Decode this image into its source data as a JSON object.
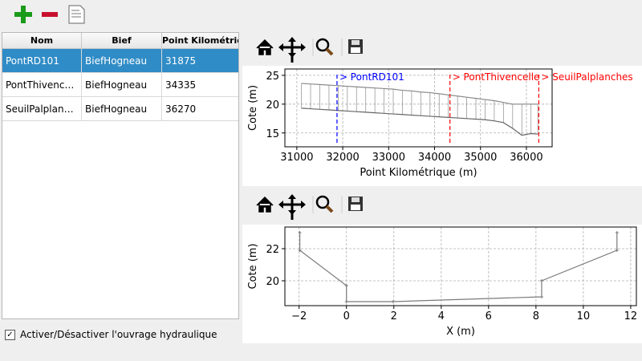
{
  "table": {
    "headers": [
      "Nom",
      "Bief",
      "Point Kilométrique"
    ],
    "rows": [
      [
        "PontRD101",
        "BiefHogneau",
        "31875"
      ],
      [
        "PontThivencelle",
        "BiefHogneau",
        "34335"
      ],
      [
        "SeuilPalplanches",
        "BiefHogneau",
        "36270"
      ]
    ],
    "selected_row": 0
  },
  "checkbox": {
    "label": "Activer/Désactiver l'ouvrage hydraulique",
    "checked": true
  },
  "chart_data": [
    {
      "type": "line",
      "xlabel": "Point Kilométrique (m)",
      "ylabel": "Cote (m)",
      "x": [
        31100,
        31300,
        31500,
        31700,
        31900,
        32100,
        32300,
        32500,
        32700,
        32900,
        33100,
        33300,
        33500,
        33700,
        33900,
        34100,
        34300,
        34500,
        34700,
        34900,
        35100,
        35300,
        35500,
        35700,
        35900,
        36100,
        36250
      ],
      "series": [
        {
          "color": "#8a8a8a",
          "values": [
            23.6,
            23.5,
            23.4,
            23.3,
            23.2,
            23.1,
            23.0,
            22.9,
            22.8,
            22.7,
            22.6,
            22.4,
            22.3,
            22.1,
            22.0,
            21.8,
            21.6,
            21.4,
            21.2,
            21.0,
            20.8,
            20.6,
            20.3,
            20.0,
            20.0,
            20.0,
            20.0
          ]
        },
        {
          "color": "#666666",
          "values": [
            19.3,
            19.2,
            19.1,
            19.0,
            18.9,
            18.8,
            18.7,
            18.6,
            18.5,
            18.4,
            18.3,
            18.2,
            18.1,
            18.0,
            17.9,
            17.8,
            17.7,
            17.6,
            17.5,
            17.4,
            17.3,
            17.1,
            16.8,
            15.8,
            14.6,
            14.9,
            14.8
          ]
        }
      ],
      "hatch": true,
      "xlim": [
        30740,
        36560
      ],
      "ylim": [
        12.6,
        26.1
      ],
      "xticks": [
        31000,
        32000,
        33000,
        34000,
        35000,
        36000
      ],
      "yticks": [
        15,
        20,
        25
      ],
      "grid": true,
      "annotations": [
        {
          "x": 31875,
          "text": "> PontRD101",
          "color": "#0000ff"
        },
        {
          "x": 34335,
          "text": "> PontThivencelle",
          "color": "#ff0000"
        },
        {
          "x": 36270,
          "text": "> SeuilPalplanches",
          "color": "#ff0000"
        }
      ]
    },
    {
      "type": "line",
      "xlabel": "X (m)",
      "ylabel": "Cote (m)",
      "x": [
        -1.97,
        -1.97,
        0,
        0,
        1.97,
        8.24,
        8.24,
        11.42,
        11.42
      ],
      "series": [
        {
          "color": "#7a7a7a",
          "values": [
            23.0,
            21.9,
            19.7,
            18.7,
            18.7,
            19.0,
            20.0,
            21.9,
            23.0
          ]
        }
      ],
      "marker": "+",
      "xlim": [
        -2.6,
        12.24
      ],
      "ylim": [
        18.45,
        23.35
      ],
      "xticks": [
        {
          "value": -2,
          "label": "−2"
        },
        0,
        2,
        4,
        6,
        8,
        10,
        12
      ],
      "yticks": [
        20,
        22
      ],
      "grid": true
    }
  ]
}
